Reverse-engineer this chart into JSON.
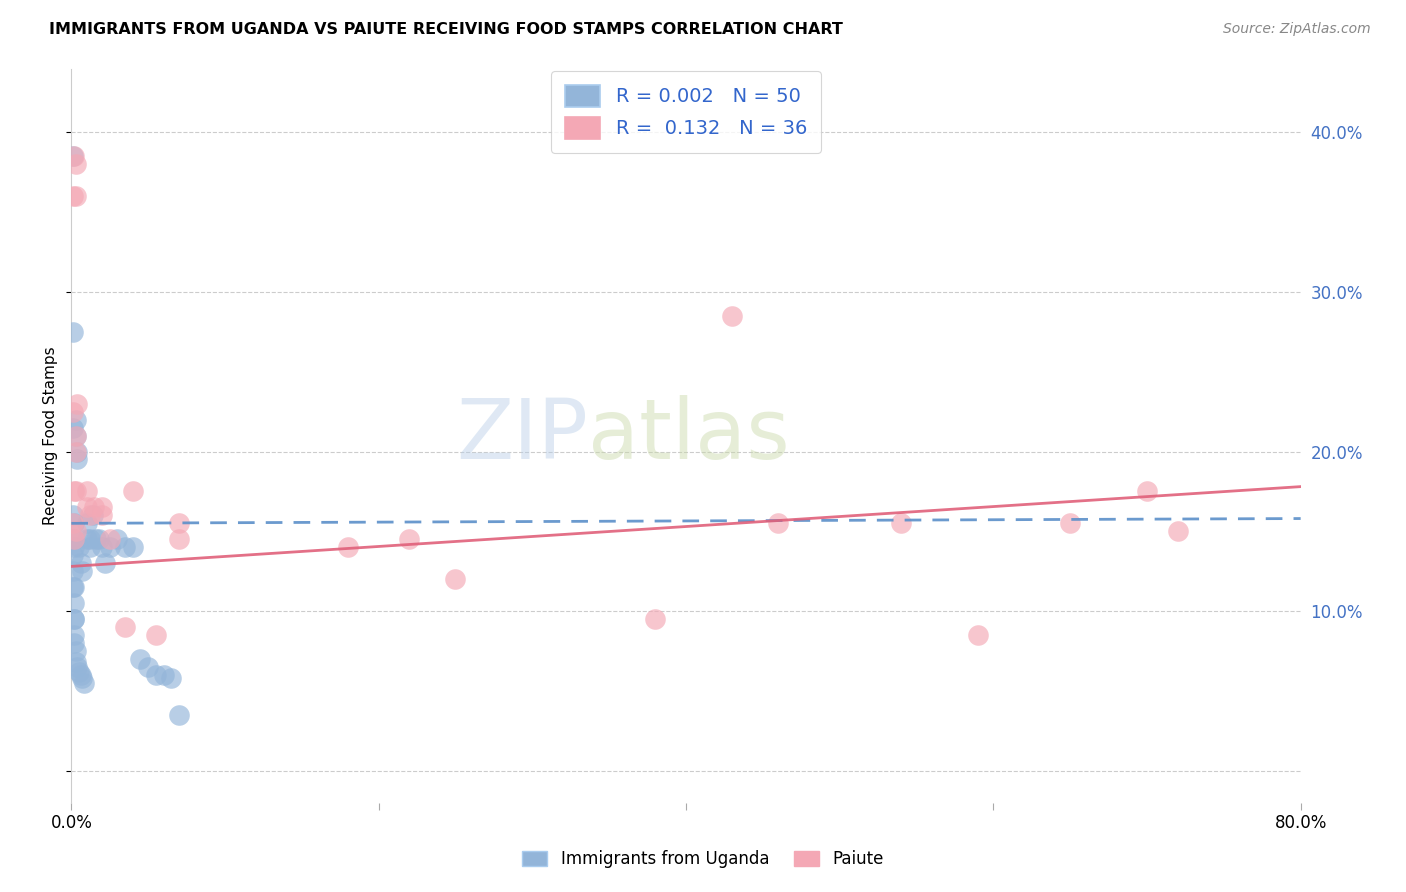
{
  "title": "IMMIGRANTS FROM UGANDA VS PAIUTE RECEIVING FOOD STAMPS CORRELATION CHART",
  "source": "Source: ZipAtlas.com",
  "ylabel": "Receiving Food Stamps",
  "xlim": [
    0.0,
    0.8
  ],
  "ylim": [
    -0.02,
    0.44
  ],
  "color_blue": "#93b5d9",
  "color_pink": "#f4a8b5",
  "trendline_blue_color": "#5b8fc9",
  "trendline_pink_color": "#e0607a",
  "watermark_zip": "ZIP",
  "watermark_atlas": "atlas",
  "bottom_legend1": "Immigrants from Uganda",
  "bottom_legend2": "Paiute",
  "legend_label1": "R = 0.002   N = 50",
  "legend_label2": "R =  0.132   N = 36",
  "uganda_x": [
    0.001,
    0.001,
    0.001,
    0.001,
    0.001,
    0.001,
    0.002,
    0.002,
    0.002,
    0.002,
    0.002,
    0.002,
    0.002,
    0.003,
    0.003,
    0.003,
    0.003,
    0.004,
    0.004,
    0.004,
    0.005,
    0.005,
    0.006,
    0.006,
    0.007,
    0.007,
    0.008,
    0.01,
    0.01,
    0.012,
    0.012,
    0.014,
    0.016,
    0.018,
    0.02,
    0.022,
    0.025,
    0.03,
    0.035,
    0.04,
    0.045,
    0.05,
    0.055,
    0.06,
    0.065,
    0.07,
    0.001,
    0.001,
    0.002,
    0.002
  ],
  "uganda_y": [
    0.385,
    0.275,
    0.215,
    0.16,
    0.145,
    0.135,
    0.155,
    0.145,
    0.14,
    0.115,
    0.105,
    0.095,
    0.08,
    0.22,
    0.21,
    0.075,
    0.068,
    0.2,
    0.195,
    0.065,
    0.14,
    0.062,
    0.13,
    0.06,
    0.125,
    0.058,
    0.055,
    0.155,
    0.145,
    0.145,
    0.14,
    0.16,
    0.145,
    0.145,
    0.14,
    0.13,
    0.14,
    0.145,
    0.14,
    0.14,
    0.07,
    0.065,
    0.06,
    0.06,
    0.058,
    0.035,
    0.125,
    0.115,
    0.095,
    0.085
  ],
  "paiute_x": [
    0.002,
    0.003,
    0.001,
    0.003,
    0.001,
    0.002,
    0.003,
    0.001,
    0.002,
    0.003,
    0.004,
    0.003,
    0.003,
    0.01,
    0.01,
    0.012,
    0.015,
    0.02,
    0.02,
    0.025,
    0.04,
    0.035,
    0.055,
    0.07,
    0.07,
    0.18,
    0.22,
    0.25,
    0.38,
    0.43,
    0.46,
    0.54,
    0.59,
    0.65,
    0.7,
    0.72
  ],
  "paiute_y": [
    0.385,
    0.38,
    0.36,
    0.36,
    0.225,
    0.175,
    0.175,
    0.155,
    0.145,
    0.21,
    0.23,
    0.2,
    0.15,
    0.175,
    0.165,
    0.16,
    0.165,
    0.165,
    0.16,
    0.145,
    0.175,
    0.09,
    0.085,
    0.155,
    0.145,
    0.14,
    0.145,
    0.12,
    0.095,
    0.285,
    0.155,
    0.155,
    0.085,
    0.155,
    0.175,
    0.15
  ]
}
